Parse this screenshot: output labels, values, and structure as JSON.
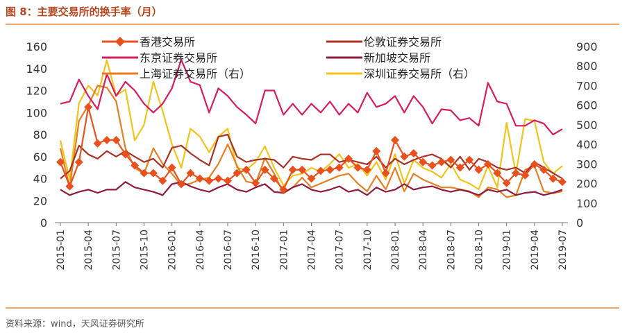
{
  "header": {
    "title": "图 8：主要交易所的换手率（月）"
  },
  "footer": {
    "source": "资料来源：wind，天风证券研究所"
  },
  "colors": {
    "accent_rule": "#f0a468",
    "title": "#b8461f"
  },
  "chart_data": {
    "type": "line",
    "title": "图 8：主要交易所的换手率（月）",
    "x": [
      "2015-01",
      "2015-02",
      "2015-03",
      "2015-04",
      "2015-05",
      "2015-06",
      "2015-07",
      "2015-08",
      "2015-09",
      "2015-10",
      "2015-11",
      "2015-12",
      "2016-01",
      "2016-02",
      "2016-03",
      "2016-04",
      "2016-05",
      "2016-06",
      "2016-07",
      "2016-08",
      "2016-09",
      "2016-10",
      "2016-11",
      "2016-12",
      "2017-01",
      "2017-02",
      "2017-03",
      "2017-04",
      "2017-05",
      "2017-06",
      "2017-07",
      "2017-08",
      "2017-09",
      "2017-10",
      "2017-11",
      "2017-12",
      "2018-01",
      "2018-02",
      "2018-03",
      "2018-04",
      "2018-05",
      "2018-06",
      "2018-07",
      "2018-08",
      "2018-09",
      "2018-10",
      "2018-11",
      "2018-12",
      "2019-01",
      "2019-02",
      "2019-03",
      "2019-04",
      "2019-05",
      "2019-06",
      "2019-07"
    ],
    "x_tick_labels": [
      "2015-01",
      "2015-04",
      "2015-07",
      "2015-10",
      "2016-01",
      "2016-04",
      "2016-07",
      "2016-10",
      "2017-01",
      "2017-04",
      "2017-07",
      "2017-10",
      "2018-01",
      "2018-04",
      "2018-07",
      "2018-10",
      "2019-01",
      "2019-04",
      "2019-07"
    ],
    "y_left": {
      "lim": [
        0,
        160
      ],
      "ticks": [
        0,
        20,
        40,
        60,
        80,
        100,
        120,
        140,
        160
      ]
    },
    "y_right": {
      "lim": [
        0,
        900
      ],
      "ticks": [
        0,
        100,
        200,
        300,
        400,
        500,
        600,
        700,
        800,
        900
      ]
    },
    "grid": false,
    "legend": "top",
    "series": [
      {
        "name": "香港交易所",
        "axis": "left",
        "color": "#e8501e",
        "marker": "diamond",
        "values": [
          55,
          33,
          55,
          105,
          72,
          75,
          75,
          62,
          52,
          45,
          45,
          38,
          50,
          35,
          45,
          40,
          38,
          40,
          38,
          45,
          48,
          36,
          48,
          40,
          30,
          48,
          48,
          40,
          47,
          48,
          50,
          58,
          50,
          48,
          65,
          45,
          75,
          60,
          63,
          55,
          52,
          55,
          57,
          50,
          57,
          48,
          53,
          45,
          36,
          45,
          43,
          53,
          48,
          40,
          37
        ]
      },
      {
        "name": "伦敦证券交易所",
        "axis": "left",
        "color": "#a93226",
        "marker": "none",
        "values": [
          40,
          47,
          70,
          62,
          58,
          65,
          60,
          65,
          60,
          55,
          58,
          50,
          68,
          70,
          63,
          57,
          52,
          78,
          80,
          60,
          55,
          57,
          58,
          57,
          50,
          60,
          58,
          57,
          62,
          62,
          55,
          57,
          55,
          53,
          60,
          50,
          58,
          53,
          57,
          60,
          62,
          58,
          50,
          60,
          48,
          58,
          55,
          50,
          48,
          50,
          45,
          55,
          50,
          45,
          40
        ]
      },
      {
        "name": "东京证券交易所",
        "axis": "left",
        "color": "#d81b60",
        "marker": "none",
        "values": [
          108,
          110,
          130,
          115,
          103,
          135,
          115,
          128,
          120,
          108,
          100,
          108,
          122,
          148,
          128,
          125,
          100,
          122,
          115,
          105,
          98,
          90,
          120,
          120,
          98,
          108,
          98,
          108,
          100,
          110,
          98,
          108,
          100,
          118,
          105,
          108,
          115,
          100,
          115,
          105,
          90,
          103,
          102,
          93,
          95,
          88,
          127,
          110,
          108,
          88,
          88,
          93,
          90,
          80,
          85
        ]
      },
      {
        "name": "新加坡交易所",
        "axis": "left",
        "color": "#8e1b3b",
        "marker": "none",
        "values": [
          30,
          25,
          28,
          30,
          27,
          30,
          30,
          37,
          32,
          30,
          28,
          25,
          35,
          37,
          33,
          30,
          28,
          32,
          35,
          30,
          28,
          32,
          35,
          28,
          27,
          32,
          35,
          30,
          28,
          30,
          33,
          28,
          30,
          25,
          32,
          28,
          30,
          35,
          30,
          32,
          33,
          30,
          28,
          30,
          28,
          25,
          30,
          28,
          30,
          25,
          27,
          28,
          25,
          27,
          30
        ]
      },
      {
        "name": "上海证券交易所（右）",
        "axis": "right",
        "color": "#e67e22",
        "marker": "none",
        "values": [
          380,
          180,
          520,
          600,
          700,
          690,
          620,
          380,
          280,
          250,
          380,
          300,
          250,
          190,
          200,
          220,
          230,
          300,
          400,
          290,
          210,
          200,
          330,
          250,
          150,
          180,
          230,
          180,
          200,
          220,
          240,
          250,
          200,
          160,
          240,
          170,
          280,
          160,
          250,
          220,
          200,
          180,
          180,
          170,
          160,
          130,
          180,
          170,
          130,
          140,
          270,
          290,
          160,
          150,
          160
        ]
      },
      {
        "name": "深圳证券交易所（右）",
        "axis": "right",
        "color": "#f0c419",
        "marker": "none",
        "values": [
          420,
          220,
          610,
          700,
          650,
          830,
          650,
          680,
          420,
          500,
          720,
          570,
          400,
          280,
          480,
          440,
          360,
          440,
          480,
          280,
          270,
          310,
          390,
          280,
          190,
          240,
          250,
          280,
          260,
          300,
          350,
          280,
          300,
          240,
          310,
          220,
          350,
          200,
          320,
          280,
          260,
          230,
          300,
          220,
          200,
          170,
          290,
          180,
          510,
          250,
          530,
          520,
          310,
          250,
          290
        ]
      }
    ]
  }
}
